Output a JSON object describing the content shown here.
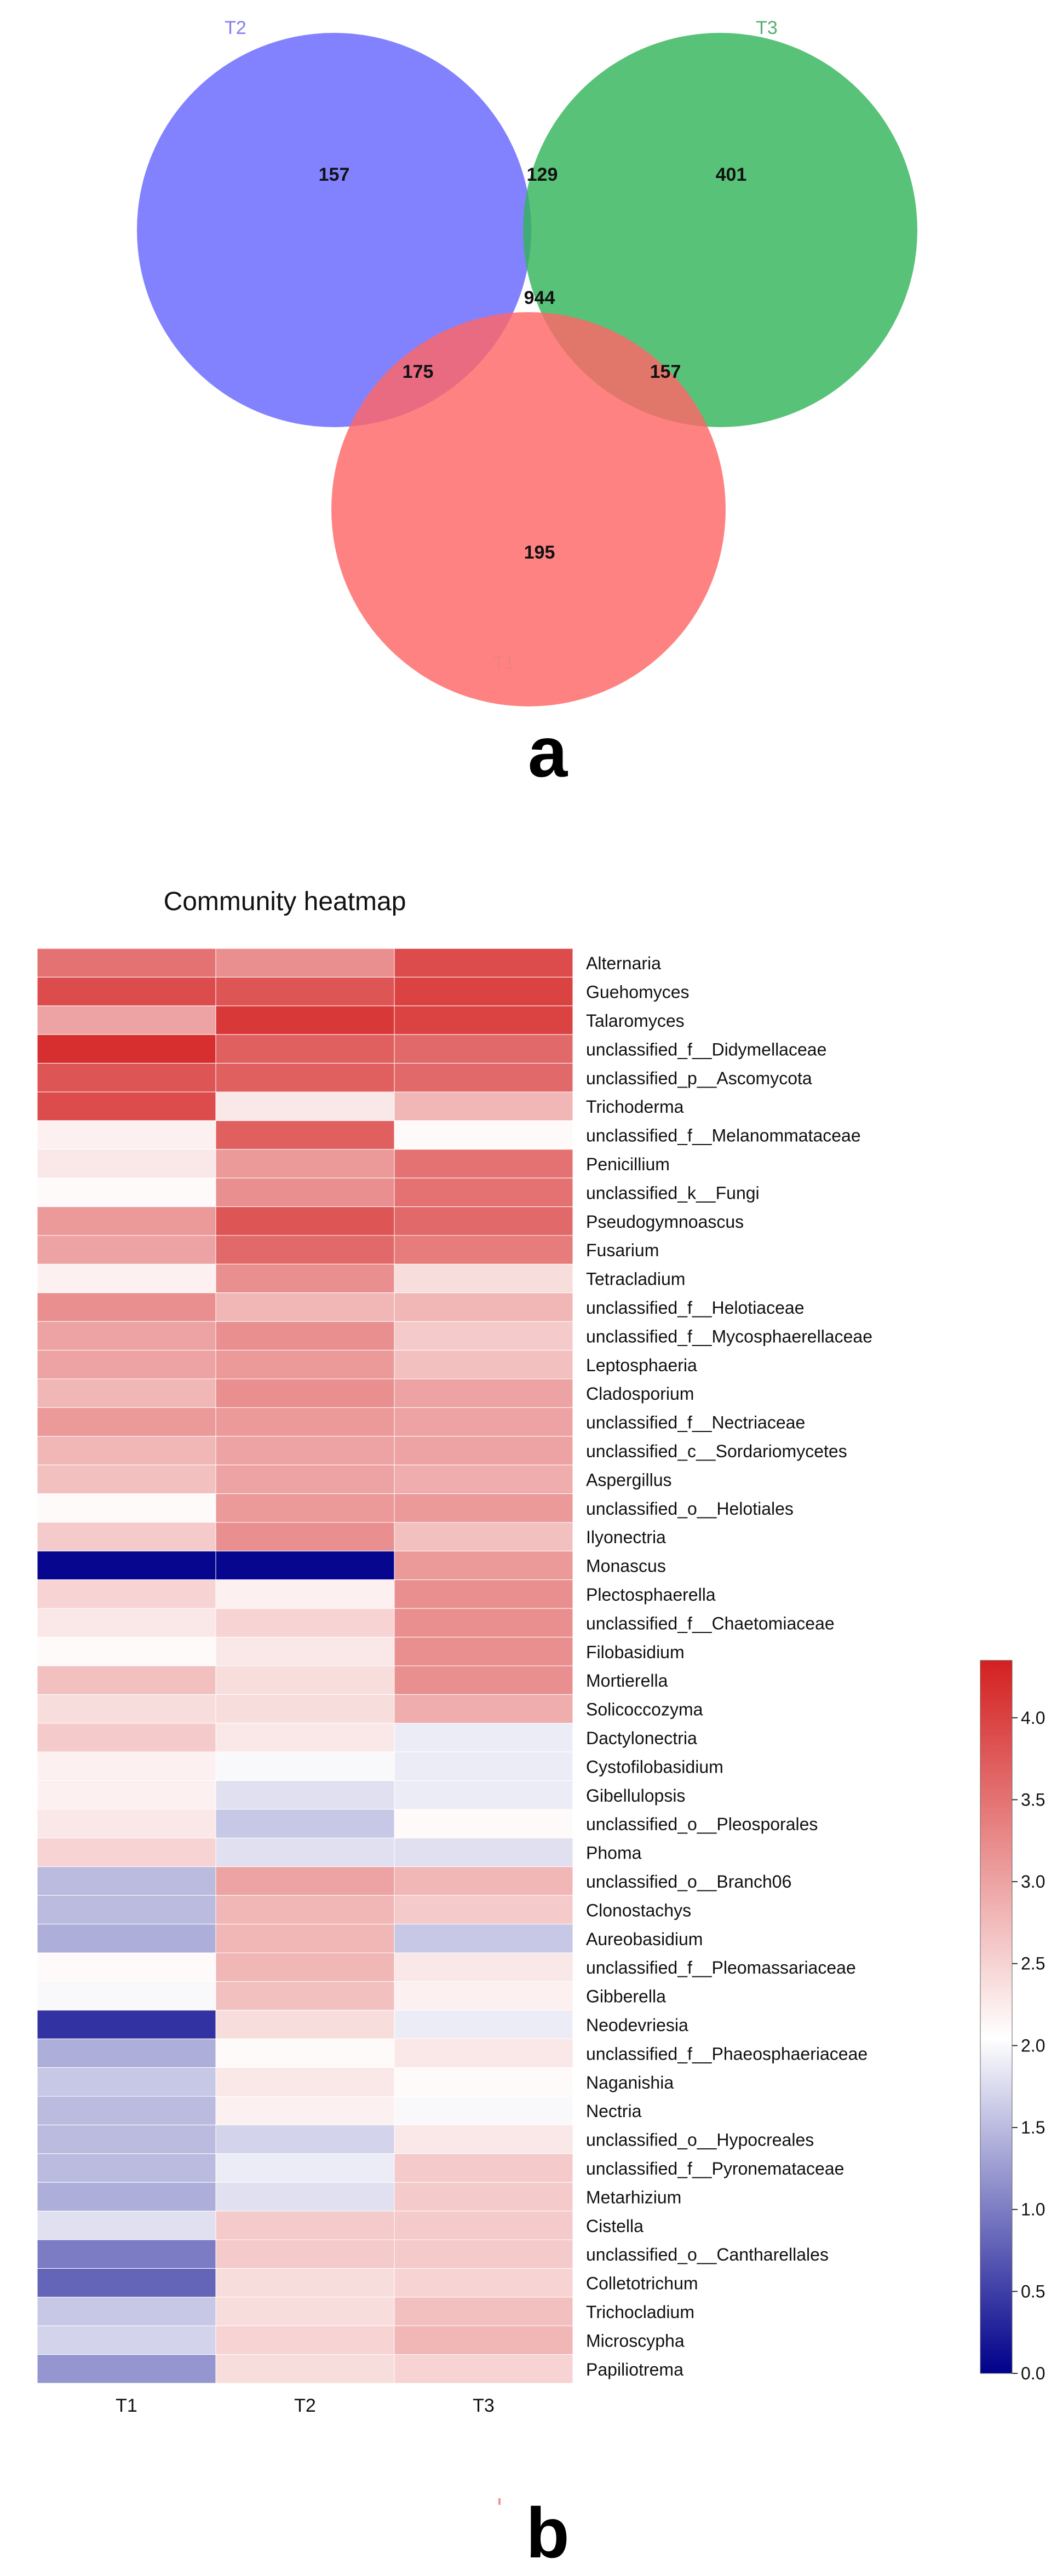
{
  "panel_a": {
    "label": "a",
    "chart_data": {
      "type": "venn",
      "sets": [
        {
          "name": "T2",
          "color": "#6666ff",
          "label_color": "#8080ee"
        },
        {
          "name": "T3",
          "color": "#33b55a",
          "label_color": "#55b070"
        },
        {
          "name": "T1",
          "color": "#ff6666",
          "label_color": "#f08080"
        }
      ],
      "regions": [
        {
          "sets": [
            "T2"
          ],
          "value": "157"
        },
        {
          "sets": [
            "T2",
            "T3"
          ],
          "value": "129"
        },
        {
          "sets": [
            "T3"
          ],
          "value": "401"
        },
        {
          "sets": [
            "T1",
            "T2",
            "T3"
          ],
          "value": "944"
        },
        {
          "sets": [
            "T1",
            "T2"
          ],
          "value": "175"
        },
        {
          "sets": [
            "T1",
            "T3"
          ],
          "value": "157"
        },
        {
          "sets": [
            "T1"
          ],
          "value": "195"
        }
      ]
    }
  },
  "panel_b": {
    "label": "b",
    "chart_data": {
      "type": "heatmap",
      "title": "Community heatmap",
      "columns": [
        "T1",
        "T2",
        "T3"
      ],
      "rows": [
        "Alternaria",
        "Guehomyces",
        "Talaromyces",
        "unclassified_f__Didymellaceae",
        "unclassified_p__Ascomycota",
        "Trichoderma",
        "unclassified_f__Melanommataceae",
        "Penicillium",
        "unclassified_k__Fungi",
        "Pseudogymnoascus",
        "Fusarium",
        "Tetracladium",
        "unclassified_f__Helotiaceae",
        "unclassified_f__Mycosphaerellaceae",
        "Leptosphaeria",
        "Cladosporium",
        "unclassified_f__Nectriaceae",
        "unclassified_c__Sordariomycetes",
        "Aspergillus",
        "unclassified_o__Helotiales",
        "Ilyonectria",
        "Monascus",
        "Plectosphaerella",
        "unclassified_f__Chaetomiaceae",
        "Filobasidium",
        "Mortierella",
        "Solicoccozyma",
        "Dactylonectria",
        "Cystofilobasidium",
        "Gibellulopsis",
        "unclassified_o__Pleosporales",
        "Phoma",
        "unclassified_o__Branch06",
        "Clonostachys",
        "Aureobasidium",
        "unclassified_f__Pleomassariaceae",
        "Gibberella",
        "Neodevriesia",
        "unclassified_f__Phaeosphaeriaceae",
        "Naganishia",
        "Nectria",
        "unclassified_o__Hypocreales",
        "unclassified_f__Pyronemataceae",
        "Metarhizium",
        "Cistella",
        "unclassified_o__Cantharellales",
        "Colletotrichum",
        "Trichocladium",
        "Microscypha",
        "Papiliotrema"
      ],
      "values": [
        [
          3.5,
          3.2,
          3.9
        ],
        [
          3.9,
          3.8,
          4.0
        ],
        [
          3.0,
          4.1,
          4.0
        ],
        [
          4.2,
          3.7,
          3.6
        ],
        [
          3.8,
          3.7,
          3.6
        ],
        [
          3.9,
          2.3,
          2.8
        ],
        [
          2.2,
          3.7,
          2.1
        ],
        [
          2.3,
          3.1,
          3.5
        ],
        [
          2.1,
          3.2,
          3.5
        ],
        [
          3.1,
          3.8,
          3.6
        ],
        [
          3.0,
          3.6,
          3.4
        ],
        [
          2.2,
          3.2,
          2.4
        ],
        [
          3.2,
          2.8,
          2.8
        ],
        [
          3.0,
          3.2,
          2.6
        ],
        [
          3.0,
          3.1,
          2.7
        ],
        [
          2.8,
          3.2,
          3.0
        ],
        [
          3.1,
          3.1,
          3.0
        ],
        [
          2.8,
          3.0,
          3.0
        ],
        [
          2.7,
          3.0,
          2.9
        ],
        [
          2.1,
          3.1,
          3.1
        ],
        [
          2.6,
          3.2,
          2.7
        ],
        [
          0.05,
          0.05,
          3.1
        ],
        [
          2.5,
          2.2,
          3.2
        ],
        [
          2.3,
          2.5,
          3.2
        ],
        [
          2.1,
          2.3,
          3.2
        ],
        [
          2.7,
          2.4,
          3.2
        ],
        [
          2.4,
          2.4,
          2.9
        ],
        [
          2.6,
          2.3,
          1.9
        ],
        [
          2.2,
          2.0,
          1.9
        ],
        [
          2.2,
          1.8,
          1.9
        ],
        [
          2.3,
          1.6,
          2.1
        ],
        [
          2.5,
          1.8,
          1.8
        ],
        [
          1.5,
          3.0,
          2.8
        ],
        [
          1.5,
          2.8,
          2.6
        ],
        [
          1.4,
          2.8,
          1.6
        ],
        [
          2.1,
          2.8,
          2.3
        ],
        [
          2.0,
          2.7,
          2.2
        ],
        [
          0.4,
          2.4,
          1.9
        ],
        [
          1.4,
          2.1,
          2.3
        ],
        [
          1.6,
          2.3,
          2.1
        ],
        [
          1.5,
          2.2,
          2.0
        ],
        [
          1.5,
          1.7,
          2.3
        ],
        [
          1.5,
          1.9,
          2.6
        ],
        [
          1.4,
          1.8,
          2.6
        ],
        [
          1.8,
          2.6,
          2.6
        ],
        [
          1.0,
          2.6,
          2.6
        ],
        [
          0.8,
          2.4,
          2.5
        ],
        [
          1.6,
          2.4,
          2.7
        ],
        [
          1.7,
          2.5,
          2.8
        ],
        [
          1.2,
          2.4,
          2.5
        ]
      ],
      "colorbar": {
        "min": 0.0,
        "max": 4.35,
        "ticks": [
          "0.0",
          "0.5",
          "1.0",
          "1.5",
          "2.0",
          "2.5",
          "3.0",
          "3.5",
          "4.0"
        ],
        "colors": [
          "#00008b",
          "#ffffff",
          "#d42020"
        ]
      }
    }
  }
}
